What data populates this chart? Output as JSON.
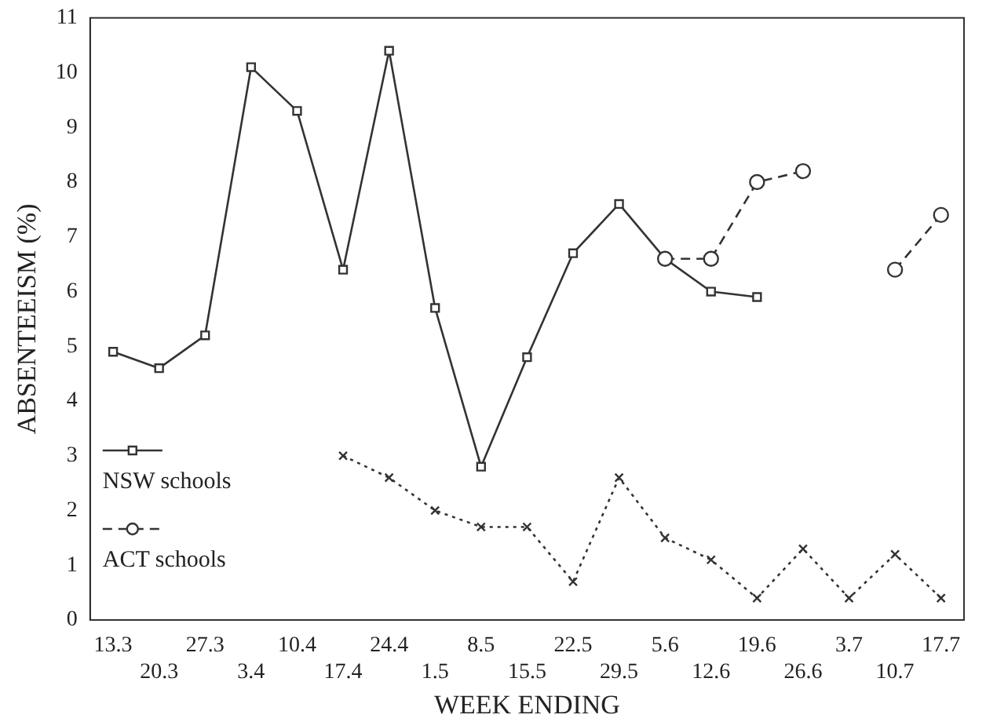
{
  "chart_data": {
    "type": "line",
    "xlabel": "WEEK ENDING",
    "ylabel": "ABSENTEEISM (%)",
    "categories": [
      "13.3",
      "20.3",
      "27.3",
      "3.4",
      "10.4",
      "17.4",
      "24.4",
      "1.5",
      "8.5",
      "15.5",
      "22.5",
      "29.5",
      "5.6",
      "12.6",
      "19.6",
      "26.6",
      "3.7",
      "10.7",
      "17.7"
    ],
    "series": [
      {
        "name": "NSW schools",
        "color": "#333333",
        "marker": "square",
        "line_style": "solid",
        "values": [
          4.9,
          4.6,
          5.2,
          10.1,
          9.3,
          6.4,
          10.4,
          5.7,
          2.8,
          4.8,
          6.7,
          7.6,
          6.6,
          6.0,
          5.9,
          null,
          null,
          null,
          null
        ]
      },
      {
        "color": "#333333",
        "marker": "cross",
        "line_style": "dotted",
        "values": [
          null,
          null,
          null,
          null,
          null,
          3.0,
          2.6,
          2.0,
          1.7,
          1.7,
          0.7,
          2.6,
          1.5,
          1.1,
          0.4,
          1.3,
          0.4,
          1.2,
          0.4
        ]
      },
      {
        "name": "ACT schools",
        "color": "#333333",
        "marker": "circle",
        "line_style": "dashed",
        "values": [
          null,
          null,
          null,
          null,
          null,
          null,
          null,
          null,
          null,
          null,
          null,
          null,
          6.6,
          6.6,
          8.0,
          8.2,
          null,
          6.4,
          7.4
        ]
      }
    ],
    "ylim": [
      0,
      11
    ],
    "yticks": [
      0,
      1,
      2,
      3,
      4,
      5,
      6,
      7,
      8,
      9,
      10,
      11
    ],
    "grid": false,
    "legend": "bottom left"
  }
}
